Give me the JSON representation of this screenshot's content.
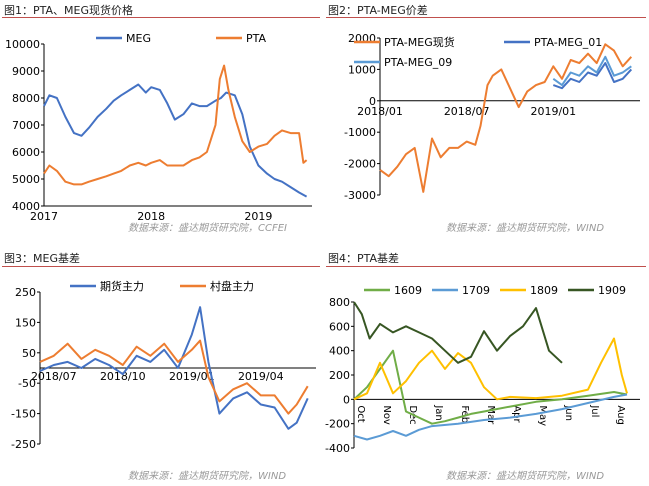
{
  "panels": [
    {
      "title": "图1：PTA、MEG现货价格",
      "source": "数据来源：盛达期货研究院，CCFEI"
    },
    {
      "title": "图2：PTA-MEG价差",
      "source": "数据来源：盛达期货研究院，WIND"
    },
    {
      "title": "图3：MEG基差",
      "source": "数据来源：盛达期货研究院，WIND"
    },
    {
      "title": "图4：PTA基差",
      "source": "数据来源：盛达期货研究院，WIND"
    }
  ],
  "colors": {
    "blue": "#4472c4",
    "orange": "#ed7d31",
    "lightblue": "#5b9bd5",
    "yellow": "#ffc000",
    "green": "#70ad47",
    "darkgreen": "#375623",
    "title_rule": "#c0504d"
  },
  "chart_data": [
    {
      "type": "line",
      "title": "",
      "xticks": [
        "2017",
        "2018",
        "2019"
      ],
      "yticks": [
        "4000",
        "5000",
        "6000",
        "7000",
        "8000",
        "9000",
        "10000"
      ],
      "ylim": [
        4000,
        10000
      ],
      "xlim": [
        2017.0,
        2019.5
      ],
      "legend": "top-left",
      "series": [
        {
          "name": "MEG",
          "color": "#4472c4",
          "x": [
            2017.0,
            2017.05,
            2017.12,
            2017.2,
            2017.28,
            2017.35,
            2017.42,
            2017.5,
            2017.58,
            2017.65,
            2017.72,
            2017.8,
            2017.88,
            2017.95,
            2018.0,
            2018.08,
            2018.15,
            2018.22,
            2018.3,
            2018.38,
            2018.45,
            2018.52,
            2018.6,
            2018.65,
            2018.7,
            2018.78,
            2018.85,
            2018.92,
            2019.0,
            2019.08,
            2019.15,
            2019.22,
            2019.3,
            2019.38,
            2019.45
          ],
          "y": [
            7700,
            8100,
            8000,
            7300,
            6700,
            6600,
            6900,
            7300,
            7600,
            7900,
            8100,
            8300,
            8500,
            8200,
            8400,
            8300,
            7800,
            7200,
            7400,
            7800,
            7700,
            7700,
            7900,
            8000,
            8200,
            8100,
            7400,
            6200,
            5500,
            5200,
            5000,
            4900,
            4700,
            4500,
            4350
          ]
        },
        {
          "name": "PTA",
          "color": "#ed7d31",
          "x": [
            2017.0,
            2017.05,
            2017.12,
            2017.2,
            2017.28,
            2017.35,
            2017.42,
            2017.5,
            2017.58,
            2017.65,
            2017.72,
            2017.8,
            2017.88,
            2017.95,
            2018.0,
            2018.08,
            2018.15,
            2018.22,
            2018.3,
            2018.38,
            2018.45,
            2018.52,
            2018.6,
            2018.64,
            2018.68,
            2018.72,
            2018.78,
            2018.85,
            2018.92,
            2019.0,
            2019.08,
            2019.15,
            2019.22,
            2019.3,
            2019.38,
            2019.42,
            2019.45
          ],
          "y": [
            5200,
            5500,
            5300,
            4900,
            4800,
            4800,
            4900,
            5000,
            5100,
            5200,
            5300,
            5500,
            5600,
            5500,
            5600,
            5700,
            5500,
            5500,
            5500,
            5700,
            5800,
            6000,
            7000,
            8700,
            9200,
            8300,
            7300,
            6400,
            6000,
            6200,
            6300,
            6600,
            6800,
            6700,
            6700,
            5600,
            5700
          ]
        }
      ]
    },
    {
      "type": "line",
      "title": "",
      "xticks": [
        "2018/01",
        "2018/07",
        "2019/01"
      ],
      "yticks": [
        "-3000",
        "-2000",
        "-1000",
        "0",
        "1000",
        "2000"
      ],
      "ylim": [
        -3000,
        2000
      ],
      "xlim": [
        2018.0,
        2019.5
      ],
      "legend": "top",
      "series": [
        {
          "name": "PTA-MEG现货",
          "color": "#ed7d31",
          "x": [
            2018.0,
            2018.05,
            2018.1,
            2018.15,
            2018.2,
            2018.25,
            2018.3,
            2018.35,
            2018.4,
            2018.45,
            2018.5,
            2018.55,
            2018.58,
            2018.62,
            2018.65,
            2018.7,
            2018.75,
            2018.8,
            2018.85,
            2018.9,
            2018.95,
            2019.0,
            2019.05,
            2019.1,
            2019.15,
            2019.2,
            2019.25,
            2019.3,
            2019.35,
            2019.4,
            2019.45
          ],
          "y": [
            -2200,
            -2400,
            -2100,
            -1700,
            -1500,
            -2900,
            -1200,
            -1800,
            -1500,
            -1500,
            -1300,
            -1400,
            -800,
            500,
            800,
            1000,
            400,
            -200,
            300,
            500,
            600,
            1100,
            700,
            1300,
            1200,
            1500,
            1200,
            1800,
            1600,
            1100,
            1400
          ]
        },
        {
          "name": "PTA-MEG_01",
          "color": "#4472c4",
          "x": [
            2019.0,
            2019.05,
            2019.1,
            2019.15,
            2019.2,
            2019.25,
            2019.3,
            2019.35,
            2019.4,
            2019.45
          ],
          "y": [
            500,
            400,
            700,
            600,
            900,
            800,
            1200,
            600,
            700,
            1000
          ]
        },
        {
          "name": "PTA-MEG_09",
          "color": "#5b9bd5",
          "x": [
            2019.0,
            2019.05,
            2019.1,
            2019.15,
            2019.2,
            2019.25,
            2019.3,
            2019.35,
            2019.4,
            2019.45
          ],
          "y": [
            700,
            500,
            900,
            800,
            1100,
            900,
            1400,
            800,
            900,
            1100
          ]
        }
      ]
    },
    {
      "type": "line",
      "title": "",
      "xticks": [
        "2018/07",
        "2018/10",
        "2019/01",
        "2019/04"
      ],
      "yticks": [
        "-250",
        "-150",
        "-50",
        "50",
        "150",
        "250"
      ],
      "ylim": [
        -250,
        250
      ],
      "xlim": [
        2018.45,
        2019.45
      ],
      "legend": "top",
      "series": [
        {
          "name": "期货主力",
          "color": "#4472c4",
          "x": [
            2018.45,
            2018.5,
            2018.55,
            2018.6,
            2018.65,
            2018.7,
            2018.75,
            2018.8,
            2018.85,
            2018.9,
            2018.95,
            2019.0,
            2019.03,
            2019.06,
            2019.1,
            2019.15,
            2019.2,
            2019.25,
            2019.3,
            2019.35,
            2019.38,
            2019.42
          ],
          "y": [
            -10,
            10,
            20,
            0,
            30,
            10,
            -20,
            40,
            20,
            60,
            0,
            110,
            200,
            20,
            -150,
            -100,
            -80,
            -120,
            -130,
            -200,
            -180,
            -100
          ]
        },
        {
          "name": "村盘主力",
          "color": "#ed7d31",
          "x": [
            2018.45,
            2018.5,
            2018.55,
            2018.6,
            2018.65,
            2018.7,
            2018.75,
            2018.8,
            2018.85,
            2018.9,
            2018.95,
            2019.0,
            2019.03,
            2019.06,
            2019.1,
            2019.15,
            2019.2,
            2019.25,
            2019.3,
            2019.35,
            2019.38,
            2019.42
          ],
          "y": [
            20,
            40,
            80,
            30,
            60,
            40,
            10,
            70,
            40,
            80,
            20,
            60,
            90,
            -30,
            -110,
            -70,
            -50,
            -90,
            -90,
            -150,
            -120,
            -60
          ]
        }
      ]
    },
    {
      "type": "line",
      "title": "",
      "xticks": [
        "Oct",
        "Nov",
        "Dec",
        "Jan",
        "Feb",
        "Mar",
        "Apr",
        "May",
        "Jun",
        "Jul",
        "Aug"
      ],
      "yticks": [
        "-400",
        "-200",
        "0",
        "200",
        "400",
        "600",
        "800"
      ],
      "ylim": [
        -400,
        800
      ],
      "xlim": [
        0,
        11
      ],
      "legend": "top",
      "series": [
        {
          "name": "1609",
          "color": "#70ad47",
          "x": [
            0,
            0.5,
            1,
            1.5,
            2,
            2.5,
            3,
            3.5,
            4,
            4.5,
            5,
            6,
            7,
            8,
            9,
            10,
            10.5
          ],
          "y": [
            0,
            100,
            250,
            400,
            -100,
            -150,
            -200,
            -180,
            -150,
            -120,
            -100,
            -60,
            -20,
            0,
            30,
            60,
            40
          ]
        },
        {
          "name": "1709",
          "color": "#5b9bd5",
          "x": [
            0,
            0.5,
            1,
            1.5,
            2,
            2.5,
            3,
            4,
            5,
            6,
            7,
            8,
            9,
            10,
            10.5
          ],
          "y": [
            -300,
            -330,
            -300,
            -260,
            -300,
            -250,
            -220,
            -200,
            -170,
            -150,
            -120,
            -80,
            -30,
            20,
            40
          ]
        },
        {
          "name": "1809",
          "color": "#ffc000",
          "x": [
            0,
            0.5,
            1,
            1.5,
            2,
            2.5,
            3,
            3.5,
            4,
            4.5,
            5,
            5.5,
            6,
            7,
            8,
            9,
            9.5,
            10,
            10.3,
            10.5
          ],
          "y": [
            0,
            50,
            300,
            50,
            150,
            300,
            400,
            250,
            380,
            300,
            100,
            0,
            20,
            10,
            30,
            80,
            300,
            500,
            200,
            50
          ]
        },
        {
          "name": "1909",
          "color": "#375623",
          "x": [
            0,
            0.3,
            0.6,
            1,
            1.5,
            2,
            2.5,
            3,
            3.5,
            4,
            4.5,
            5,
            5.5,
            6,
            6.5,
            7,
            7.5,
            8
          ],
          "y": [
            800,
            700,
            500,
            620,
            550,
            600,
            550,
            500,
            400,
            300,
            350,
            560,
            400,
            520,
            600,
            750,
            400,
            300
          ]
        }
      ]
    }
  ]
}
